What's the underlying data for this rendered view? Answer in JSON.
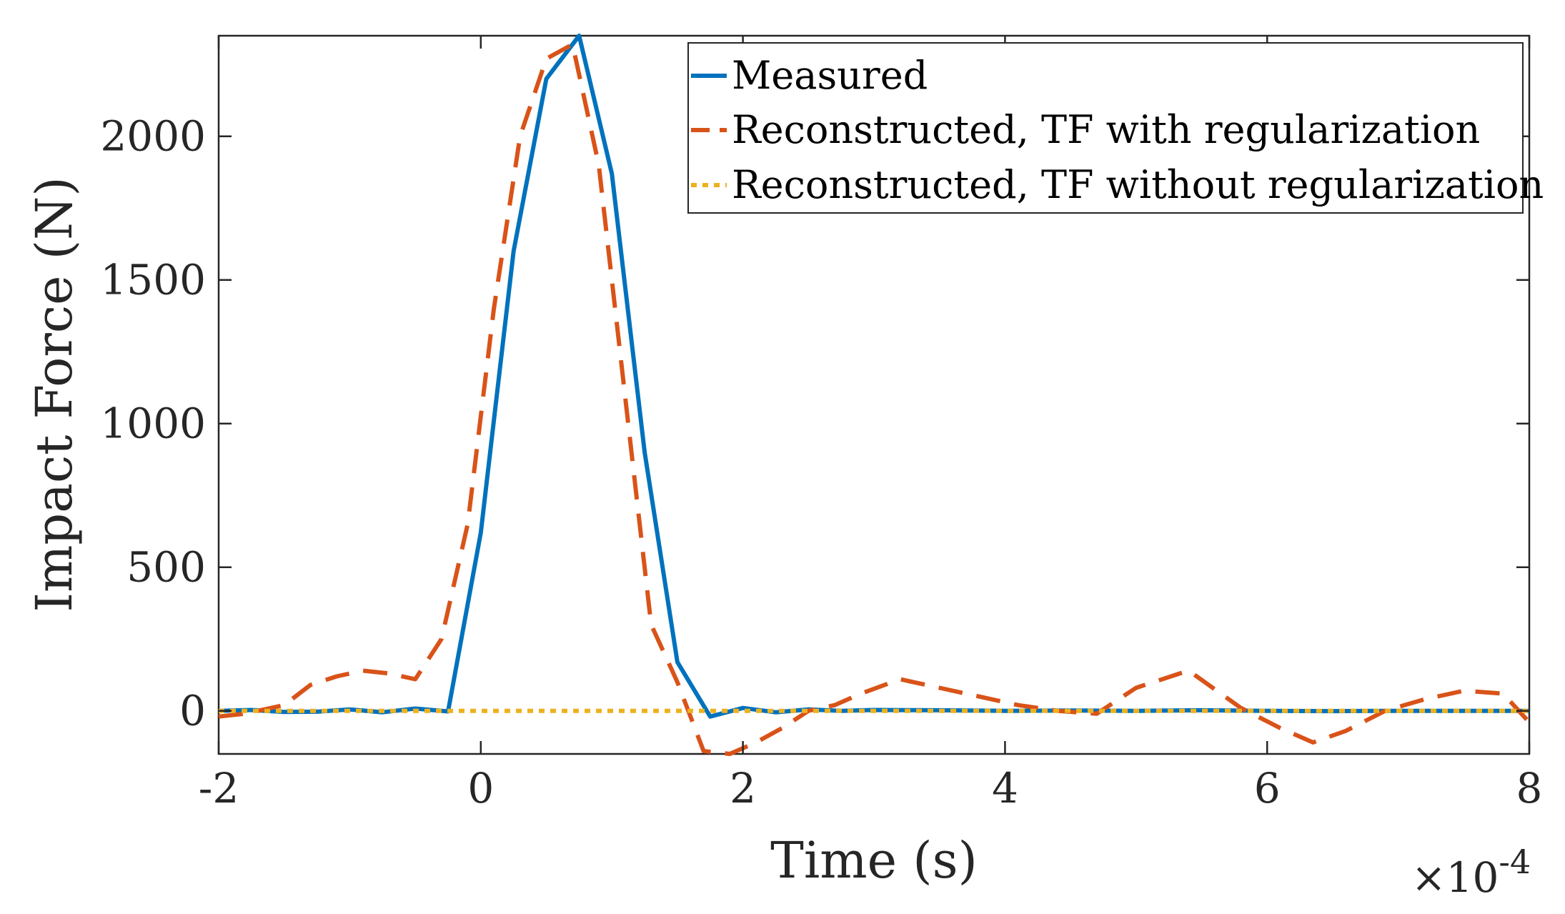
{
  "chart_data": {
    "type": "line",
    "xlabel": "Time (s)",
    "ylabel": "Impact Force (N)",
    "x_exponent_label": {
      "base": "×10",
      "power": "-4"
    },
    "xlim": [
      -2,
      8
    ],
    "ylim": [
      -150,
      2350
    ],
    "xticks": [
      -2,
      0,
      2,
      4,
      6,
      8
    ],
    "xtick_labels": [
      "-2",
      "0",
      "2",
      "4",
      "6",
      "8"
    ],
    "yticks": [
      0,
      500,
      1000,
      1500,
      2000
    ],
    "ytick_labels": [
      "0",
      "500",
      "1000",
      "1500",
      "2000"
    ],
    "grid": false,
    "legend_position": "top-right",
    "series": [
      {
        "name": "Measured",
        "color": "#0072BD",
        "style": "solid",
        "x": [
          -2,
          -1.75,
          -1.5,
          -1.25,
          -1.0,
          -0.75,
          -0.5,
          -0.25,
          0,
          0.25,
          0.5,
          0.75,
          1.0,
          1.25,
          1.5,
          1.75,
          2.0,
          2.25,
          2.5,
          2.75,
          3.0,
          3.5,
          4.0,
          4.5,
          5.0,
          5.5,
          6.0,
          6.5,
          7.0,
          7.5,
          8.0
        ],
        "y": [
          0,
          3,
          -4,
          -3,
          5,
          -5,
          8,
          -2,
          620,
          1600,
          2200,
          2350,
          1870,
          900,
          170,
          -20,
          10,
          -5,
          5,
          0,
          3,
          2,
          0,
          1,
          0,
          2,
          0,
          -1,
          0,
          0,
          0
        ]
      },
      {
        "name": "Reconstructed, TF with regularization",
        "color": "#D95319",
        "style": "dashed",
        "x": [
          -2,
          -1.8,
          -1.5,
          -1.3,
          -1.1,
          -0.9,
          -0.7,
          -0.5,
          -0.3,
          -0.1,
          0.1,
          0.3,
          0.5,
          0.7,
          0.9,
          1.1,
          1.3,
          1.5,
          1.7,
          1.9,
          2.1,
          2.3,
          2.5,
          2.7,
          2.9,
          3.2,
          3.5,
          3.8,
          4.1,
          4.4,
          4.7,
          5.0,
          5.4,
          5.8,
          6.1,
          6.35,
          6.6,
          6.9,
          7.2,
          7.5,
          7.8,
          8.0
        ],
        "y": [
          -20,
          -10,
          20,
          90,
          120,
          140,
          130,
          110,
          250,
          650,
          1400,
          2000,
          2270,
          2320,
          1900,
          1100,
          300,
          100,
          -140,
          -150,
          -110,
          -60,
          0,
          20,
          60,
          110,
          80,
          50,
          20,
          0,
          -10,
          80,
          140,
          10,
          -60,
          -110,
          -70,
          0,
          40,
          70,
          60,
          -40
        ]
      },
      {
        "name": "Reconstructed, TF without regularization",
        "color": "#EDB120",
        "style": "dotted",
        "x": [
          -2,
          -1,
          0,
          1,
          2,
          3,
          4,
          5,
          6,
          7,
          8
        ],
        "y": [
          0,
          0,
          0,
          0,
          0,
          0,
          0,
          0,
          0,
          0,
          0
        ]
      }
    ]
  }
}
